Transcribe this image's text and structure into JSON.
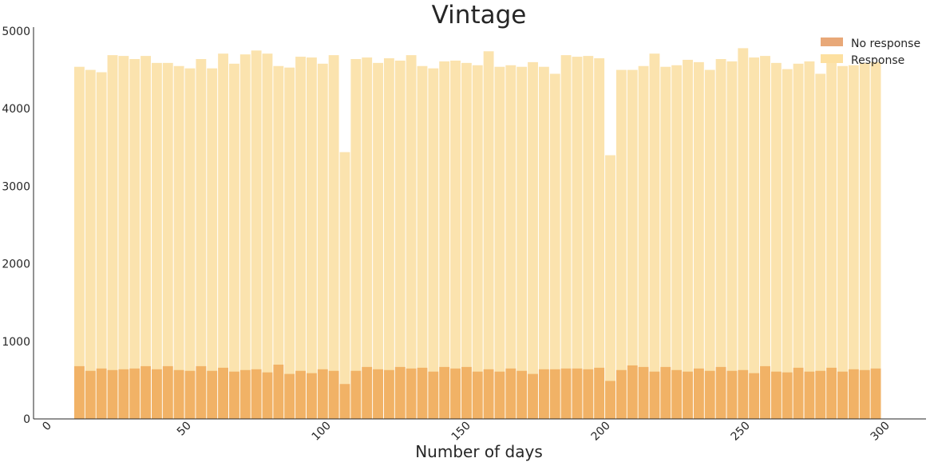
{
  "chart_data": {
    "type": "bar",
    "stacked": true,
    "title": "Vintage",
    "xlabel": "Number of days",
    "ylabel": "",
    "xlim": [
      0,
      300
    ],
    "ylim": [
      0,
      5000
    ],
    "xticks": [
      "0",
      "50",
      "100",
      "150",
      "200",
      "250",
      "300"
    ],
    "yticks": [
      "0",
      "1000",
      "2000",
      "3000",
      "4000",
      "5000"
    ],
    "xtick_values": [
      0,
      50,
      100,
      150,
      200,
      250,
      300
    ],
    "ytick_values": [
      0,
      1000,
      2000,
      3000,
      4000,
      5000
    ],
    "grid": false,
    "legend_position": "top-right",
    "bins": {
      "start": 10,
      "end": 299,
      "count": 72
    },
    "series": [
      {
        "name": "No response",
        "color": "#f1b266",
        "legend_color": "#e8a878",
        "values": [
          680,
          620,
          650,
          630,
          640,
          650,
          680,
          640,
          680,
          630,
          620,
          680,
          620,
          660,
          610,
          630,
          640,
          600,
          700,
          580,
          620,
          590,
          640,
          620,
          450,
          620,
          670,
          640,
          630,
          670,
          650,
          660,
          610,
          670,
          650,
          670,
          610,
          640,
          610,
          650,
          620,
          580,
          640,
          640,
          650,
          650,
          640,
          660,
          490,
          630,
          690,
          670,
          610,
          670,
          630,
          610,
          650,
          620,
          670,
          620,
          630,
          590,
          680,
          610,
          600,
          660,
          610,
          620,
          660,
          610,
          640,
          630,
          650
        ]
      },
      {
        "name": "Response",
        "color": "#fbe3ae",
        "legend_color": "#fde0a0",
        "totals": [
          4540,
          4500,
          4470,
          4690,
          4680,
          4640,
          4680,
          4590,
          4590,
          4550,
          4520,
          4640,
          4520,
          4710,
          4580,
          4700,
          4750,
          4710,
          4550,
          4530,
          4670,
          4660,
          4580,
          4690,
          3440,
          4640,
          4660,
          4590,
          4650,
          4620,
          4690,
          4550,
          4520,
          4610,
          4620,
          4590,
          4560,
          4740,
          4540,
          4560,
          4540,
          4600,
          4540,
          4450,
          4690,
          4670,
          4680,
          4650,
          3400,
          4500,
          4500,
          4550,
          4710,
          4540,
          4560,
          4630,
          4600,
          4500,
          4640,
          4610,
          4780,
          4660,
          4680,
          4590,
          4510,
          4580,
          4610,
          4450,
          4600,
          4550,
          4560,
          4590,
          4600
        ]
      }
    ]
  }
}
